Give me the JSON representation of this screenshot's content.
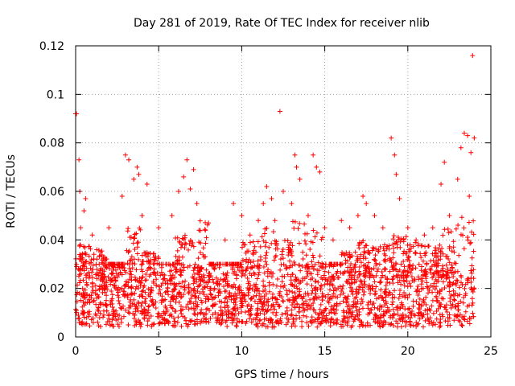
{
  "chart_data": {
    "type": "scatter",
    "title": "Day 281 of 2019, Rate Of TEC Index for receiver nlib",
    "xlabel": "GPS time / hours",
    "ylabel": "ROTI / TECUs",
    "xlim": [
      0,
      25
    ],
    "ylim": [
      0,
      0.12
    ],
    "xticks": [
      0,
      5,
      10,
      15,
      20,
      25
    ],
    "xtick_labels": [
      "0",
      "5",
      "10",
      "15",
      "20",
      "25"
    ],
    "yticks": [
      0,
      0.02,
      0.04,
      0.06,
      0.08,
      0.1,
      0.12
    ],
    "ytick_labels": [
      "0",
      "0.02",
      "0.04",
      "0.06",
      "0.08",
      "0.1",
      "0.12"
    ],
    "grid": true,
    "marker": "+",
    "color": "#ff0000",
    "series": [
      {
        "name": "ROTI",
        "points": [
          [
            0.0,
            0.092
          ],
          [
            0.05,
            0.092
          ],
          [
            0.2,
            0.073
          ],
          [
            0.25,
            0.06
          ],
          [
            0.3,
            0.045
          ],
          [
            0.5,
            0.052
          ],
          [
            0.6,
            0.057
          ],
          [
            1.0,
            0.042
          ],
          [
            1.5,
            0.035
          ],
          [
            2.0,
            0.045
          ],
          [
            2.5,
            0.03
          ],
          [
            2.8,
            0.058
          ],
          [
            3.0,
            0.075
          ],
          [
            3.2,
            0.073
          ],
          [
            3.5,
            0.065
          ],
          [
            3.7,
            0.07
          ],
          [
            3.8,
            0.067
          ],
          [
            4.0,
            0.05
          ],
          [
            4.3,
            0.063
          ],
          [
            5.0,
            0.045
          ],
          [
            5.8,
            0.05
          ],
          [
            6.2,
            0.06
          ],
          [
            6.5,
            0.066
          ],
          [
            6.7,
            0.073
          ],
          [
            6.9,
            0.061
          ],
          [
            7.1,
            0.069
          ],
          [
            7.3,
            0.055
          ],
          [
            8.0,
            0.047
          ],
          [
            9.0,
            0.04
          ],
          [
            9.5,
            0.055
          ],
          [
            10.0,
            0.05
          ],
          [
            10.5,
            0.042
          ],
          [
            11.0,
            0.048
          ],
          [
            11.3,
            0.055
          ],
          [
            11.5,
            0.062
          ],
          [
            11.8,
            0.057
          ],
          [
            12.0,
            0.048
          ],
          [
            12.3,
            0.093
          ],
          [
            12.5,
            0.06
          ],
          [
            13.0,
            0.055
          ],
          [
            13.2,
            0.075
          ],
          [
            13.3,
            0.07
          ],
          [
            13.5,
            0.065
          ],
          [
            14.0,
            0.05
          ],
          [
            14.3,
            0.075
          ],
          [
            14.5,
            0.07
          ],
          [
            14.7,
            0.068
          ],
          [
            15.0,
            0.045
          ],
          [
            15.5,
            0.04
          ],
          [
            16.0,
            0.048
          ],
          [
            16.5,
            0.045
          ],
          [
            17.0,
            0.05
          ],
          [
            17.3,
            0.058
          ],
          [
            17.5,
            0.055
          ],
          [
            18.0,
            0.05
          ],
          [
            18.5,
            0.045
          ],
          [
            19.0,
            0.082
          ],
          [
            19.2,
            0.075
          ],
          [
            19.3,
            0.067
          ],
          [
            19.5,
            0.057
          ],
          [
            20.0,
            0.045
          ],
          [
            20.5,
            0.04
          ],
          [
            21.0,
            0.042
          ],
          [
            21.5,
            0.045
          ],
          [
            22.0,
            0.063
          ],
          [
            22.2,
            0.072
          ],
          [
            22.5,
            0.05
          ],
          [
            23.0,
            0.065
          ],
          [
            23.2,
            0.078
          ],
          [
            23.4,
            0.084
          ],
          [
            23.6,
            0.083
          ],
          [
            23.7,
            0.058
          ],
          [
            23.8,
            0.076
          ],
          [
            23.9,
            0.116
          ],
          [
            24.0,
            0.082
          ]
        ]
      }
    ],
    "dense_band": {
      "description": "dense band of ROTI samples across the whole day",
      "x_range": [
        0,
        24
      ],
      "y_range": [
        0.004,
        0.03
      ],
      "hourly_envelope": [
        0.038,
        0.036,
        0.03,
        0.045,
        0.035,
        0.03,
        0.042,
        0.048,
        0.03,
        0.03,
        0.04,
        0.045,
        0.04,
        0.048,
        0.045,
        0.03,
        0.035,
        0.04,
        0.038,
        0.042,
        0.04,
        0.038,
        0.045,
        0.05,
        0.06
      ]
    }
  }
}
